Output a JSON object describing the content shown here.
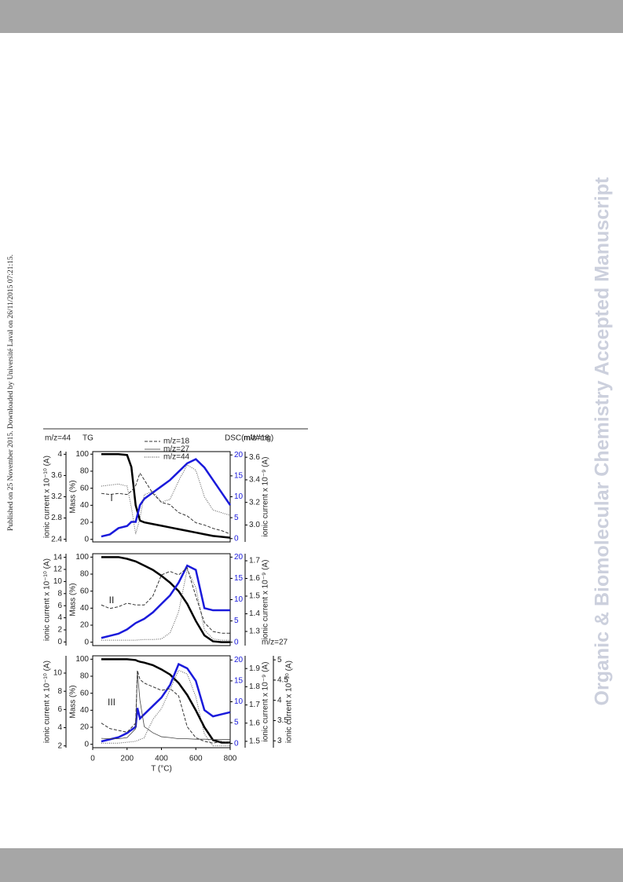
{
  "side_note": "Published on 25 November 2015. Downloaded by Université Laval on 26/11/2015 07:21:15.",
  "watermark": "Organic & Biomolecular Chemistry Accepted Manuscript",
  "chart_data": [
    {
      "type": "line",
      "label": "I",
      "x": [
        50,
        100,
        150,
        200,
        225,
        250,
        275,
        300,
        350,
        400,
        450,
        500,
        550,
        600,
        650,
        700,
        750,
        800
      ],
      "xlim": [
        0,
        800
      ],
      "ylim": [
        -3,
        103
      ],
      "yticks": [
        0,
        20,
        40,
        60,
        80,
        100
      ],
      "ylabel": "Mass (%)",
      "ytitle": "TG",
      "y2lim": [
        -0.8,
        20.8
      ],
      "y2ticks": [
        0,
        5,
        10,
        15,
        20
      ],
      "y2title": "DSC(mW/mg)",
      "y2color": "#1a1adb",
      "y3lim": [
        2.35,
        4.05
      ],
      "y3ticks": [
        2.4,
        2.8,
        3.2,
        3.6,
        4
      ],
      "y3label": "ionic current x 10⁻¹⁰ (A)",
      "y3title": "m/z=44",
      "y4lim": [
        2.85,
        3.65
      ],
      "y4ticks": [
        {
          "value": 3,
          "label": "3.0"
        },
        3.2,
        3.4,
        3.6
      ],
      "y4label": "ionic current x 10⁻⁹ (A)",
      "y4title": "m/z=18",
      "legend": [
        {
          "label": "m/z=18",
          "style": "dashed"
        },
        {
          "label": "m/z=27",
          "style": "thin"
        },
        {
          "label": "m/z=44",
          "style": "dotted"
        }
      ],
      "series": [
        {
          "axis": "y",
          "color": "#000000",
          "style": "thick",
          "values": [
            100,
            100,
            100,
            99,
            85,
            40,
            22,
            20,
            18,
            16,
            14,
            12,
            10,
            8,
            6,
            4,
            3,
            2
          ]
        },
        {
          "axis": "y2",
          "color": "#1a1adb",
          "style": "thick",
          "values": [
            0.5,
            1,
            2.5,
            3,
            4,
            4,
            8,
            9.5,
            11,
            12.5,
            14,
            16,
            18,
            19,
            17,
            14,
            11,
            8
          ]
        },
        {
          "axis": "y4",
          "color": "#333333",
          "style": "dashed",
          "values": [
            3.28,
            3.27,
            3.28,
            3.27,
            3.3,
            3.35,
            3.46,
            3.4,
            3.28,
            3.2,
            3.18,
            3.11,
            3.08,
            3.02,
            3.0,
            2.97,
            2.95,
            2.92
          ]
        },
        {
          "axis": "y3",
          "color": "#555555",
          "style": "dotted",
          "values": [
            3.4,
            3.42,
            3.44,
            3.4,
            3.0,
            2.5,
            2.8,
            3.24,
            3.3,
            3.1,
            3.15,
            3.5,
            3.8,
            3.7,
            3.2,
            2.95,
            2.9,
            2.85
          ]
        }
      ]
    },
    {
      "type": "line",
      "label": "II",
      "x": [
        50,
        100,
        150,
        200,
        250,
        300,
        350,
        400,
        450,
        500,
        550,
        600,
        650,
        700,
        750,
        800
      ],
      "xlim": [
        0,
        800
      ],
      "ylim": [
        -4,
        104
      ],
      "yticks": [
        0,
        20,
        40,
        60,
        80,
        100
      ],
      "ylabel": "Mass (%)",
      "y2lim": [
        -0.8,
        20.8
      ],
      "y2ticks": [
        0,
        5,
        10,
        15,
        20
      ],
      "y2color": "#1a1adb",
      "y3lim": [
        -0.6,
        14.6
      ],
      "y3ticks": [
        0,
        2,
        4,
        6,
        8,
        10,
        12,
        14
      ],
      "y3label": "ionic current x 10⁻¹⁰ (A)",
      "y4lim": [
        1.22,
        1.74
      ],
      "y4ticks": [
        1.3,
        1.4,
        1.5,
        1.6,
        1.7
      ],
      "y4label": "ionic current x 10⁻⁹ (A)",
      "series": [
        {
          "axis": "y",
          "color": "#000000",
          "style": "thick",
          "values": [
            100,
            100,
            100,
            98,
            95,
            90,
            85,
            78,
            70,
            60,
            45,
            25,
            8,
            1,
            0,
            0
          ]
        },
        {
          "axis": "y2",
          "color": "#1a1adb",
          "style": "thick",
          "values": [
            1,
            1.5,
            2,
            3,
            4.5,
            5.5,
            7,
            9,
            11,
            14,
            18,
            17,
            8,
            7.5,
            7.5,
            7.5
          ]
        },
        {
          "axis": "y4",
          "color": "#333333",
          "style": "dashed",
          "values": [
            1.45,
            1.43,
            1.44,
            1.46,
            1.45,
            1.45,
            1.5,
            1.62,
            1.64,
            1.62,
            1.66,
            1.5,
            1.35,
            1.3,
            1.29,
            1.29
          ]
        },
        {
          "axis": "y3",
          "color": "#555555",
          "style": "dotted",
          "values": [
            0.3,
            0.3,
            0.3,
            0.3,
            0.3,
            0.4,
            0.4,
            0.5,
            1.5,
            5,
            12,
            9,
            2,
            0.5,
            0.3,
            0.3
          ]
        }
      ]
    },
    {
      "type": "line",
      "label": "III",
      "x": [
        50,
        100,
        150,
        200,
        250,
        260,
        275,
        300,
        350,
        400,
        450,
        500,
        550,
        600,
        650,
        700,
        750,
        800
      ],
      "xlim": [
        0,
        800
      ],
      "xticks": [
        0,
        200,
        400,
        600,
        800
      ],
      "xlabel": "T (°C)",
      "ylim": [
        -4,
        104
      ],
      "yticks": [
        0,
        20,
        40,
        60,
        80,
        100
      ],
      "ylabel": "Mass (%)",
      "y2lim": [
        -1,
        21
      ],
      "y2ticks": [
        0,
        5,
        10,
        15,
        20
      ],
      "y2color": "#1a1adb",
      "y3lim": [
        1.8,
        11.9
      ],
      "y3ticks": [
        2,
        4,
        6,
        8,
        10
      ],
      "y3label": "ionic current x 10⁻¹⁰ (A)",
      "y4lim": [
        1.465,
        1.97
      ],
      "y4ticks": [
        1.5,
        1.6,
        1.7,
        1.8,
        1.9
      ],
      "y4label": "ionic current x 10⁻⁹ (A)",
      "y5lim": [
        2.83,
        5.1
      ],
      "y5ticks": [
        3,
        3.5,
        4,
        4.5,
        5
      ],
      "y5label": "ionic current x 10⁻¹⁰ (A)",
      "y5title": "m/z=27",
      "series": [
        {
          "axis": "y",
          "color": "#000000",
          "style": "thick",
          "values": [
            100,
            100,
            100,
            100,
            99,
            98,
            97,
            96,
            93,
            88,
            82,
            72,
            58,
            40,
            20,
            5,
            2,
            2
          ]
        },
        {
          "axis": "y2",
          "color": "#1a1adb",
          "style": "thick",
          "values": [
            0.5,
            1,
            1.5,
            2.5,
            4,
            8.5,
            6,
            7,
            9,
            11,
            14,
            19,
            18,
            15,
            8,
            6.5,
            7,
            7.5
          ]
        },
        {
          "axis": "y4",
          "color": "#333333",
          "style": "dashed",
          "values": [
            1.6,
            1.57,
            1.56,
            1.55,
            1.6,
            1.89,
            1.84,
            1.82,
            1.8,
            1.78,
            1.79,
            1.75,
            1.58,
            1.52,
            1.5,
            1.49,
            1.5,
            1.49
          ]
        },
        {
          "axis": "y5",
          "color": "#444444",
          "style": "thin",
          "values": [
            3.06,
            3.05,
            3.05,
            3.08,
            3.3,
            4.7,
            4.0,
            3.35,
            3.2,
            3.1,
            3.08,
            3.05,
            3.05,
            3.04,
            3.04,
            3.03,
            3.03,
            3.03
          ]
        },
        {
          "axis": "y3",
          "color": "#555555",
          "style": "dotted",
          "values": [
            2.3,
            2.3,
            2.3,
            2.4,
            2.5,
            2.6,
            2.7,
            2.9,
            4.9,
            6.1,
            8.2,
            10.3,
            9.9,
            7.4,
            3.3,
            2.0,
            2,
            2
          ]
        }
      ]
    }
  ]
}
